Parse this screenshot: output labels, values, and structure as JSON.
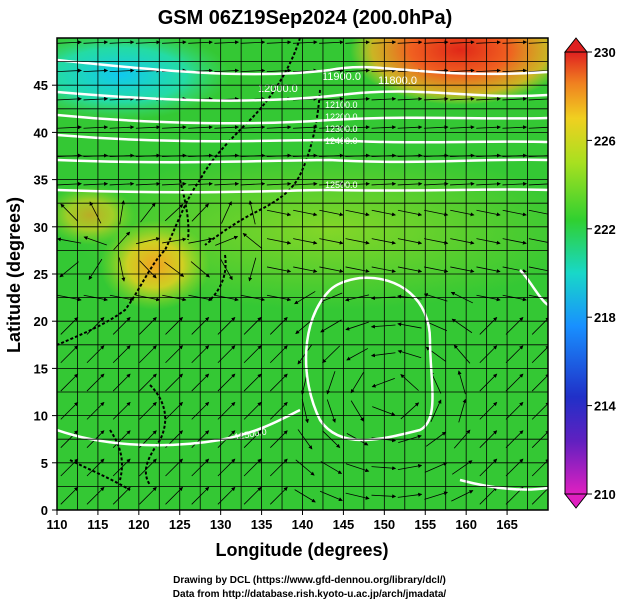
{
  "title": "GSM 06Z19Sep2024 (200.0hPa)",
  "x_axis": {
    "label": "Longitude (degrees)",
    "range": [
      110,
      170
    ],
    "ticks": [
      110,
      115,
      120,
      125,
      130,
      135,
      140,
      145,
      150,
      155,
      160,
      165
    ]
  },
  "y_axis": {
    "label": "Latitude  (degrees)",
    "range": [
      0,
      50
    ],
    "ticks": [
      0,
      5,
      10,
      15,
      20,
      25,
      30,
      35,
      40,
      45
    ]
  },
  "colorbar": {
    "ticks": [
      210,
      214,
      218,
      222,
      226,
      230
    ],
    "range": [
      210,
      230
    ],
    "colors": [
      "#e020c0",
      "#3020c0",
      "#1878ff",
      "#18d0e0",
      "#20d040",
      "#a8e020",
      "#f0d020",
      "#f08020",
      "#e02020"
    ]
  },
  "contour_labels": [
    "12000.0",
    "11900.0",
    "11800.0",
    "12100.0",
    "12200.0",
    "12300.0",
    "12400.0",
    "12500.0",
    "12500.0"
  ],
  "credits": {
    "line1": "Drawing by DCL (https://www.gfd-dennou.org/library/dcl/)",
    "line2": "Data from http://database.rish.kyoto-u.ac.jp/arch/jmadata/"
  },
  "colors": {
    "field_green": "#30c830",
    "cold": "#18d8e0",
    "warm": "#f0c020",
    "hot": "#e83018"
  }
}
